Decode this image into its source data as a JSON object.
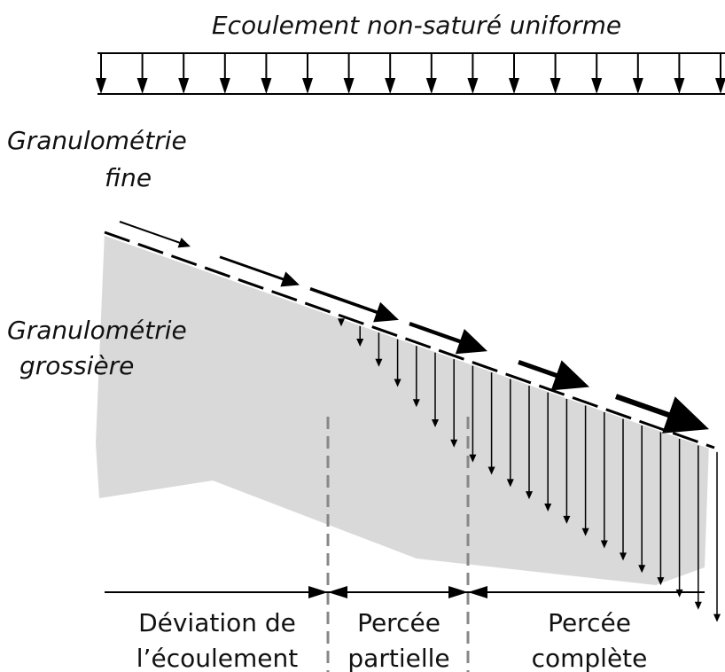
{
  "title": "Ecoulement non-saturé uniforme",
  "layers": [
    {
      "lines": [
        "Granulométrie",
        "fine"
      ]
    },
    {
      "lines": [
        "Granulométrie",
        "grossière"
      ]
    }
  ],
  "zones": [
    {
      "lines": [
        "Déviation de",
        "l’écoulement"
      ]
    },
    {
      "lines": [
        "Percée",
        "partielle"
      ]
    },
    {
      "lines": [
        "Percée",
        "complète"
      ]
    }
  ]
}
